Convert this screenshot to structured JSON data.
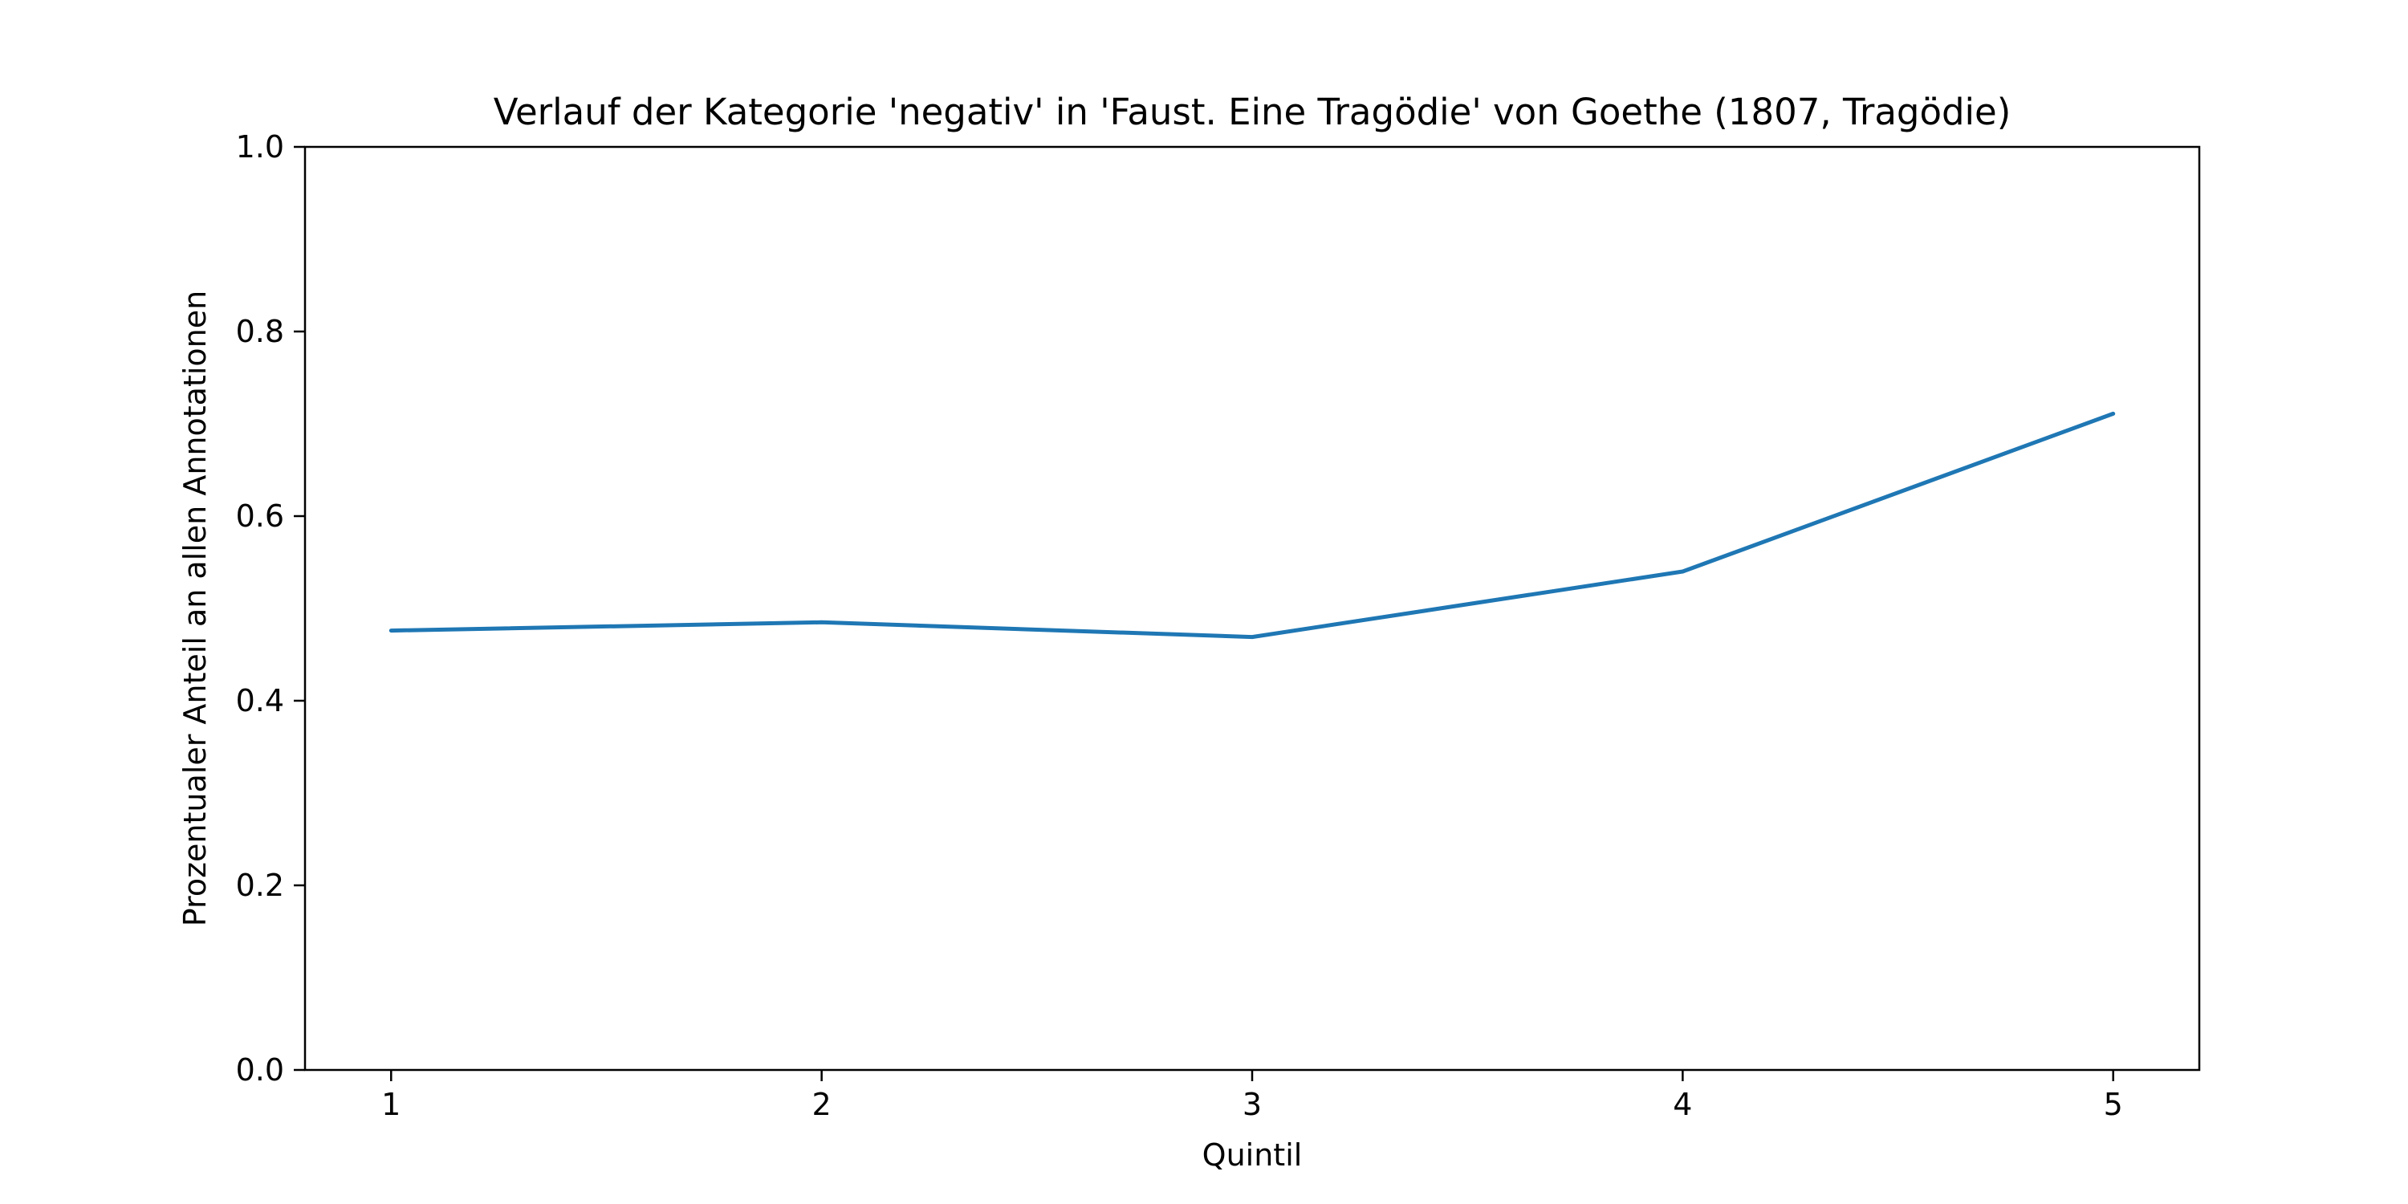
{
  "chart_data": {
    "type": "line",
    "title": "Verlauf der Kategorie 'negativ' in 'Faust. Eine Tragödie' von Goethe (1807, Tragödie)",
    "xlabel": "Quintil",
    "ylabel": "Prozentualer Anteil an allen Annotationen",
    "x": [
      1,
      2,
      3,
      4,
      5
    ],
    "xticks": [
      "1",
      "2",
      "3",
      "4",
      "5"
    ],
    "yticks": [
      "0.0",
      "0.2",
      "0.4",
      "0.6",
      "0.8",
      "1.0"
    ],
    "xlim": [
      0.8,
      5.2
    ],
    "ylim": [
      0,
      1
    ],
    "grid": false,
    "series": [
      {
        "values": [
          0.476,
          0.485,
          0.469,
          0.54,
          0.711
        ],
        "color": "#1f77b4"
      }
    ]
  }
}
